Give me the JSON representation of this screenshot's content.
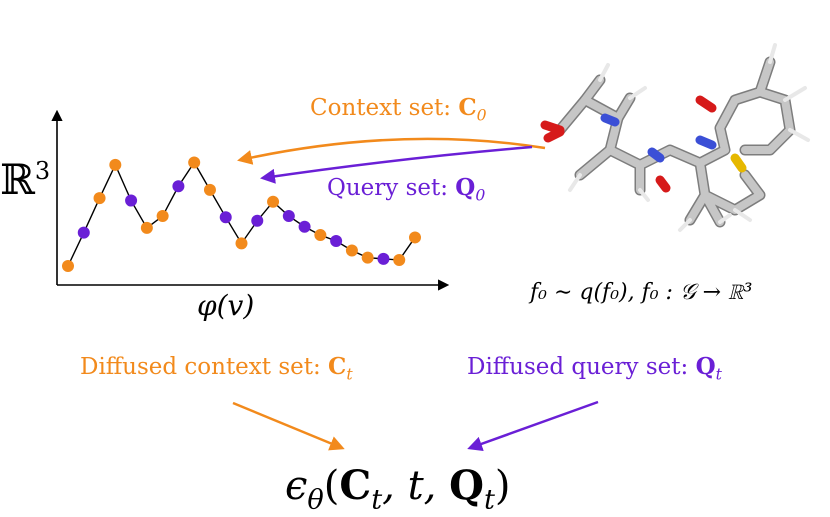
{
  "colors": {
    "context": "#f28a1c",
    "query": "#6a1fd6",
    "line": "#000000",
    "molecule_carbon": "#b8b8b8",
    "molecule_oxygen": "#d61a1a",
    "molecule_nitrogen": "#3b4fd6",
    "molecule_sulfur": "#e6b800"
  },
  "plot": {
    "y_axis_label": "ℝ",
    "y_axis_label_sup": "3",
    "x_axis_label": "φ(v)",
    "points": [
      {
        "x": 0,
        "y": 0.0,
        "set": "context"
      },
      {
        "x": 1,
        "y": 0.28,
        "set": "query"
      },
      {
        "x": 2,
        "y": 0.57,
        "set": "context"
      },
      {
        "x": 3,
        "y": 0.85,
        "set": "context"
      },
      {
        "x": 4,
        "y": 0.55,
        "set": "query"
      },
      {
        "x": 5,
        "y": 0.32,
        "set": "context"
      },
      {
        "x": 6,
        "y": 0.42,
        "set": "context"
      },
      {
        "x": 7,
        "y": 0.67,
        "set": "query"
      },
      {
        "x": 8,
        "y": 0.87,
        "set": "context"
      },
      {
        "x": 9,
        "y": 0.64,
        "set": "context"
      },
      {
        "x": 10,
        "y": 0.41,
        "set": "query"
      },
      {
        "x": 11,
        "y": 0.19,
        "set": "context"
      },
      {
        "x": 12,
        "y": 0.38,
        "set": "query"
      },
      {
        "x": 13,
        "y": 0.54,
        "set": "context"
      },
      {
        "x": 14,
        "y": 0.42,
        "set": "query"
      },
      {
        "x": 15,
        "y": 0.33,
        "set": "purple_skip"
      },
      {
        "x": 16,
        "y": 0.26,
        "set": "context"
      },
      {
        "x": 17,
        "y": 0.21,
        "set": "query"
      },
      {
        "x": 18,
        "y": 0.13,
        "set": "context"
      },
      {
        "x": 19,
        "y": 0.07,
        "set": "context"
      },
      {
        "x": 20,
        "y": 0.06,
        "set": "query"
      },
      {
        "x": 21,
        "y": 0.05,
        "set": "context"
      },
      {
        "x": 22,
        "y": 0.24,
        "set": "context"
      }
    ]
  },
  "labels": {
    "context_set": {
      "text": "Context set: ",
      "symbol": "C",
      "sub": "0"
    },
    "query_set": {
      "text": "Query set: ",
      "symbol": "Q",
      "sub": "0"
    },
    "function_def": "f₀ ∼ q(f₀), f₀ : 𝒢 → ℝ³",
    "diffused_context": {
      "text": "Diffused context set: ",
      "symbol": "C",
      "sub": "t"
    },
    "diffused_query": {
      "text": "Diffused query set: ",
      "symbol": "Q",
      "sub": "t"
    },
    "model_output": {
      "eps": "ϵ",
      "eps_sub": "θ",
      "open": "(",
      "c": "C",
      "c_sub": "t",
      "t": ", t, ",
      "q": "Q",
      "q_sub": "t",
      "close": ")"
    }
  }
}
